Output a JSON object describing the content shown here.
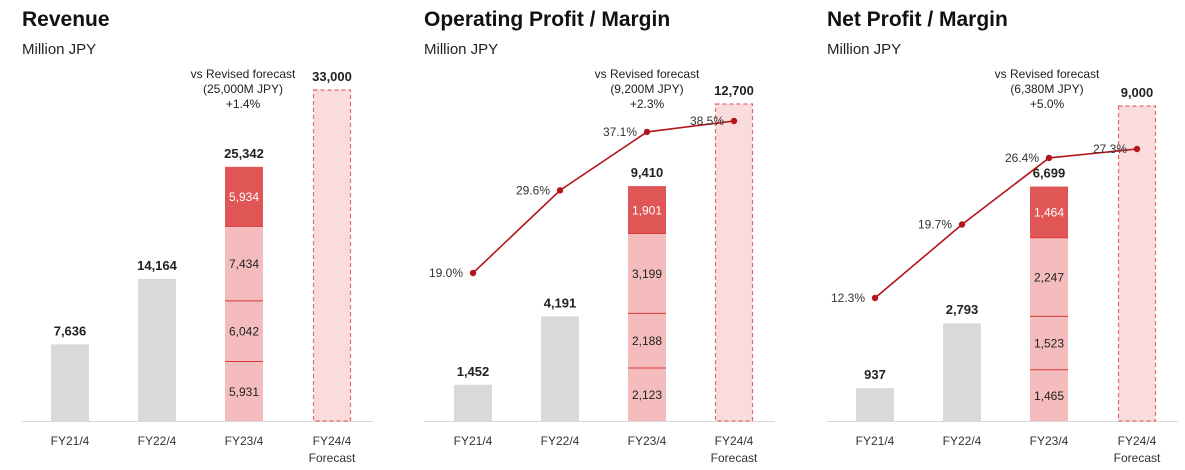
{
  "chart_data": [
    {
      "type": "bar",
      "title": "Revenue",
      "subtitle": "Million JPY",
      "categories": [
        "FY21/4",
        "FY22/4",
        "FY23/4",
        "FY24/4"
      ],
      "category_sublabels": [
        "",
        "",
        "",
        "Forecast"
      ],
      "totals": [
        7636,
        14164,
        25342,
        33000
      ],
      "total_labels": [
        "7,636",
        "14,164",
        "25,342",
        "33,000"
      ],
      "stacked_segments_FY23_4": {
        "values": [
          5931,
          6042,
          7434,
          5934
        ],
        "labels": [
          "5,931",
          "6,042",
          "7,434",
          "5,934"
        ]
      },
      "annotation": [
        "vs Revised forecast",
        "(25,000M JPY)",
        "+1.4%"
      ],
      "ylim": [
        0,
        33000
      ],
      "colors": {
        "past": "#d9d9d9",
        "segment": "#f4bcbc",
        "segment_top": "#e05656",
        "divider": "#d93a3a",
        "forecast_fill": "#fbdcdc",
        "forecast_border": "#e06a6a"
      }
    },
    {
      "type": "bar",
      "title": "Operating Profit / Margin",
      "subtitle": "Million JPY",
      "categories": [
        "FY21/4",
        "FY22/4",
        "FY23/4",
        "FY24/4"
      ],
      "category_sublabels": [
        "",
        "",
        "",
        "Forecast"
      ],
      "totals": [
        1452,
        4191,
        9410,
        12700
      ],
      "total_labels": [
        "1,452",
        "4,191",
        "9,410",
        "12,700"
      ],
      "stacked_segments_FY23_4": {
        "values": [
          2123,
          2188,
          3199,
          1901
        ],
        "labels": [
          "2,123",
          "2,188",
          "3,199",
          "1,901"
        ]
      },
      "margin_line": {
        "values": [
          19.0,
          29.6,
          37.1,
          38.5
        ],
        "labels": [
          "19.0%",
          "29.6%",
          "37.1%",
          "38.5%"
        ],
        "color": "#b3151b"
      },
      "annotation": [
        "vs Revised forecast",
        "(9,200M JPY)",
        "+2.3%"
      ],
      "ylim": [
        0,
        12700
      ],
      "colors": {
        "past": "#d9d9d9",
        "segment": "#f4bcbc",
        "segment_top": "#e05656",
        "divider": "#d93a3a",
        "forecast_fill": "#fbdcdc",
        "forecast_border": "#e06a6a"
      }
    },
    {
      "type": "bar",
      "title": "Net Profit / Margin",
      "subtitle": "Million JPY",
      "categories": [
        "FY21/4",
        "FY22/4",
        "FY23/4",
        "FY24/4"
      ],
      "category_sublabels": [
        "",
        "",
        "",
        "Forecast"
      ],
      "totals": [
        937,
        2793,
        6699,
        9000
      ],
      "total_labels": [
        "937",
        "2,793",
        "6,699",
        "9,000"
      ],
      "stacked_segments_FY23_4": {
        "values": [
          1465,
          1523,
          2247,
          1464
        ],
        "labels": [
          "1,465",
          "1,523",
          "2,247",
          "1,464"
        ]
      },
      "margin_line": {
        "values": [
          12.3,
          19.7,
          26.4,
          27.3
        ],
        "labels": [
          "12.3%",
          "19.7%",
          "26.4%",
          "27.3%"
        ],
        "color": "#b3151b"
      },
      "annotation": [
        "vs Revised forecast",
        "(6,380M JPY)",
        "+5.0%"
      ],
      "ylim": [
        0,
        9000
      ],
      "colors": {
        "past": "#d9d9d9",
        "segment": "#f4bcbc",
        "segment_top": "#e05656",
        "divider": "#d93a3a",
        "forecast_fill": "#fbdcdc",
        "forecast_border": "#e06a6a"
      }
    }
  ]
}
